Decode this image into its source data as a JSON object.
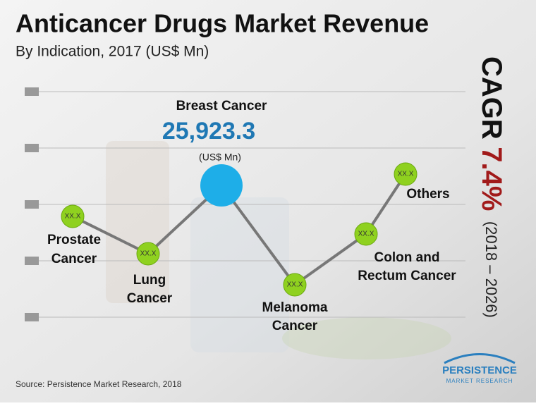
{
  "header": {
    "title": "Anticancer Drugs Market Revenue",
    "subtitle": "By Indication, 2017 (US$ Mn)"
  },
  "highlight": {
    "label": "Breast Cancer",
    "value": "25,923.3",
    "unit": "(US$ Mn)"
  },
  "nodes": [
    {
      "lines": [
        "Prostate",
        "Cancer"
      ],
      "value": "XX.X"
    },
    {
      "lines": [
        "Lung",
        "Cancer"
      ],
      "value": "XX.X"
    },
    {
      "lines": [
        "Melanoma",
        "Cancer"
      ],
      "value": "XX.X"
    },
    {
      "lines": [
        "Colon and",
        "Rectum Cancer"
      ],
      "value": "XX.X"
    },
    {
      "lines": [
        "Others"
      ],
      "value": "XX.X"
    }
  ],
  "cagr": {
    "label": "CAGR",
    "value": "7.4%",
    "period": "(2018 – 2026)"
  },
  "source": "Source: Persistence Market Research, 2018",
  "logo": {
    "name": "PERSISTENCE",
    "tagline": "MARKET RESEARCH"
  }
}
